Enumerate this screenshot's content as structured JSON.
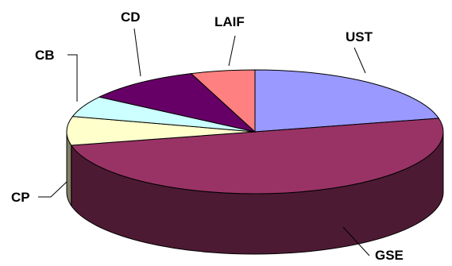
{
  "chart_data": {
    "type": "pie",
    "style": "3d-pie",
    "title": "",
    "slices": [
      {
        "label": "UST",
        "value": 21.5,
        "color": "#9999FF"
      },
      {
        "label": "GSE",
        "value": 50.0,
        "color": "#993366"
      },
      {
        "label": "CP",
        "value": 7.5,
        "color": "#FFFFCC"
      },
      {
        "label": "CB",
        "value": 5.5,
        "color": "#CCFFFF"
      },
      {
        "label": "CD",
        "value": 10.0,
        "color": "#660066"
      },
      {
        "label": "LAIF",
        "value": 5.5,
        "color": "#FF8080"
      }
    ],
    "legend": "none",
    "labels": "outside-with-leader-lines"
  }
}
